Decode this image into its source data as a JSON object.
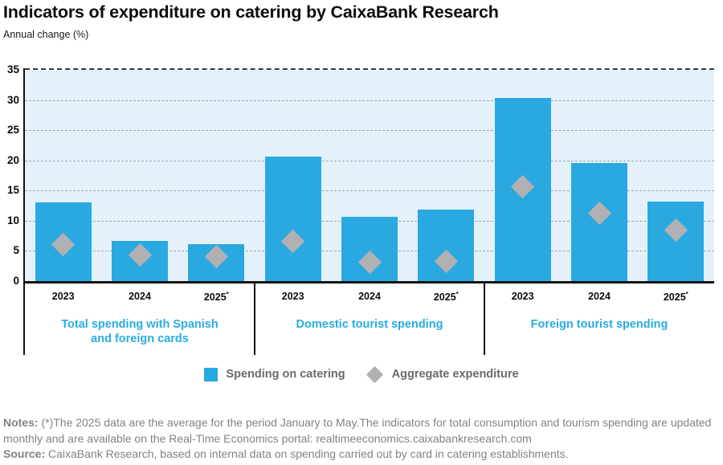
{
  "header": {
    "title": "Indicators of expenditure on catering by CaixaBank Research",
    "subtitle": "Annual change (%)"
  },
  "legend": {
    "items": [
      {
        "label": "Spending on catering",
        "marker": "blue-square",
        "color": "#2aa9e0"
      },
      {
        "label": "Aggregate expenditure",
        "marker": "grey-diamond",
        "color": "#b1b1b3"
      }
    ]
  },
  "notes": {
    "label": "Notes:",
    "text": " (*)The 2025 data are the average for the period January to May.The indicators for total consumption and tourism spending are updated monthly and are available on the Real-Time Economics portal: realtimeeconomics.caixabankresearch.com"
  },
  "source": {
    "label": "Source:",
    "text": " CaixaBank Research, based on internal data on spending carried out by card in catering establishments."
  },
  "colors": {
    "bar": "#2aa9e0",
    "diamond": "#b1b1b3",
    "plot_background": "#e4f1fb",
    "group_label": "#29abe2",
    "notes_text": "#828286"
  },
  "chart_data": {
    "type": "bar",
    "title": "Indicators of expenditure on catering by CaixaBank Research",
    "subtitle": "Annual change (%)",
    "ylabel": "Annual change (%)",
    "ylim": [
      0,
      35
    ],
    "yticks": [
      0,
      5,
      10,
      15,
      20,
      25,
      30,
      35
    ],
    "grid": true,
    "legend_position": "bottom",
    "groups": [
      {
        "label": "Total spending with Spanish and foreign cards",
        "label_lines": "Total spending with Spanish\nand foreign cards",
        "years": [
          "2023",
          "2024",
          "2025*"
        ],
        "spending_on_catering": [
          13.0,
          6.7,
          6.1
        ],
        "aggregate_expenditure": [
          6.0,
          4.3,
          4.1
        ]
      },
      {
        "label": "Domestic tourist spending",
        "label_lines": "Domestic tourist spending",
        "years": [
          "2023",
          "2024",
          "2025*"
        ],
        "spending_on_catering": [
          20.6,
          10.7,
          11.9
        ],
        "aggregate_expenditure": [
          6.6,
          3.1,
          3.2
        ]
      },
      {
        "label": "Foreign tourist spending",
        "label_lines": "Foreign tourist spending",
        "years": [
          "2023",
          "2024",
          "2025*"
        ],
        "spending_on_catering": [
          30.3,
          19.6,
          13.2
        ],
        "aggregate_expenditure": [
          15.6,
          11.2,
          8.5
        ]
      }
    ],
    "series": [
      {
        "name": "Spending on catering",
        "style": "bar",
        "color": "#2aa9e0"
      },
      {
        "name": "Aggregate expenditure",
        "style": "diamond",
        "color": "#b1b1b3"
      }
    ]
  }
}
